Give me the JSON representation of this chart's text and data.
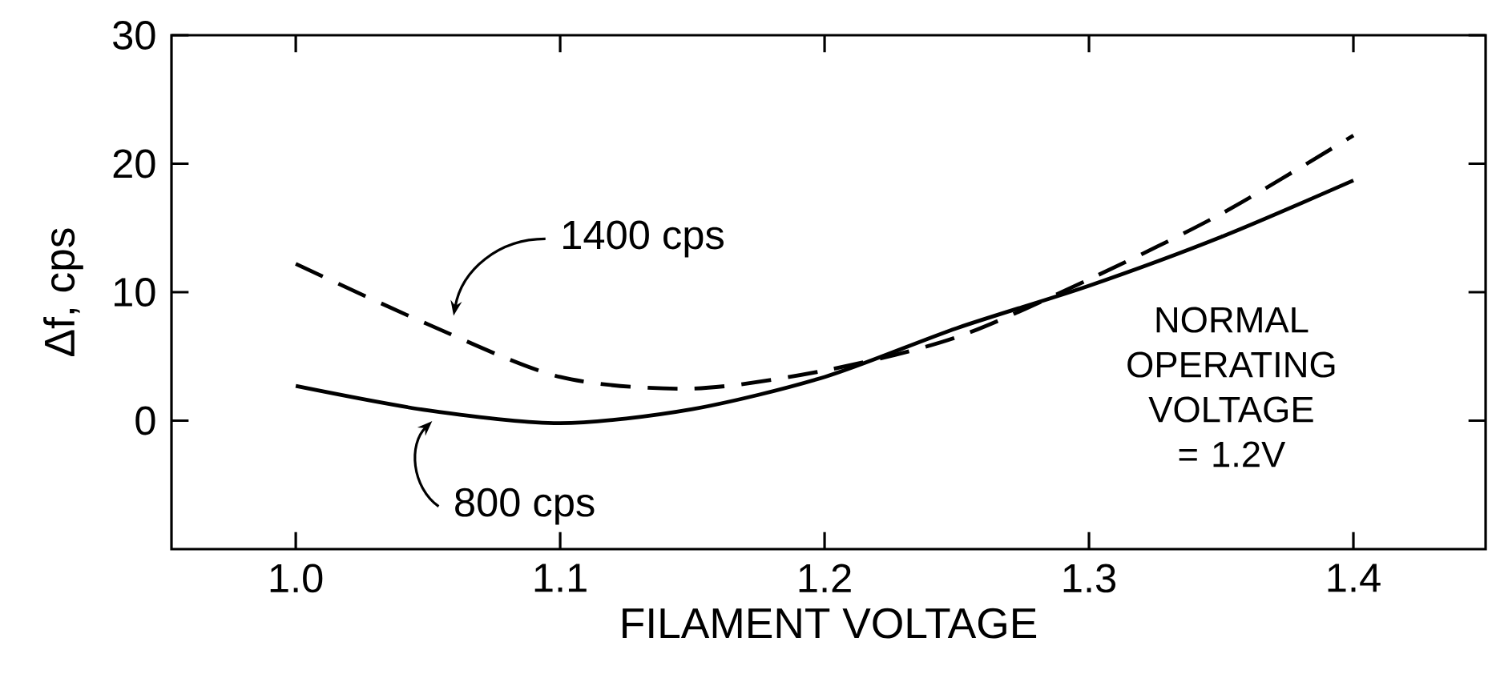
{
  "chart_data": {
    "type": "line",
    "xlabel": "FILAMENT VOLTAGE",
    "ylabel": "Δf, cps",
    "x": [
      1.0,
      1.05,
      1.1,
      1.15,
      1.2,
      1.25,
      1.3,
      1.35,
      1.4
    ],
    "series": [
      {
        "name": "1400 cps",
        "color": "#000000",
        "line_style": "dashed",
        "values": [
          12.2,
          7.5,
          3.4,
          2.5,
          3.9,
          6.5,
          11.0,
          16.1,
          22.2
        ]
      },
      {
        "name": "800 cps",
        "color": "#000000",
        "line_style": "solid",
        "values": [
          2.7,
          0.8,
          -0.2,
          0.9,
          3.4,
          7.2,
          10.5,
          14.3,
          18.7
        ]
      }
    ],
    "xlim": [
      0.953,
      1.45
    ],
    "ylim": [
      -10,
      30
    ],
    "xticks": [
      {
        "value": 1.0,
        "label": "1.0"
      },
      {
        "value": 1.1,
        "label": "1.1"
      },
      1.2,
      1.3,
      1.4
    ],
    "yticks": [
      0,
      10,
      20,
      30
    ],
    "annotations": [
      "NORMAL OPERATING VOLTAGE = 1.2V"
    ],
    "legend": false,
    "grid": false,
    "marker": "none"
  }
}
